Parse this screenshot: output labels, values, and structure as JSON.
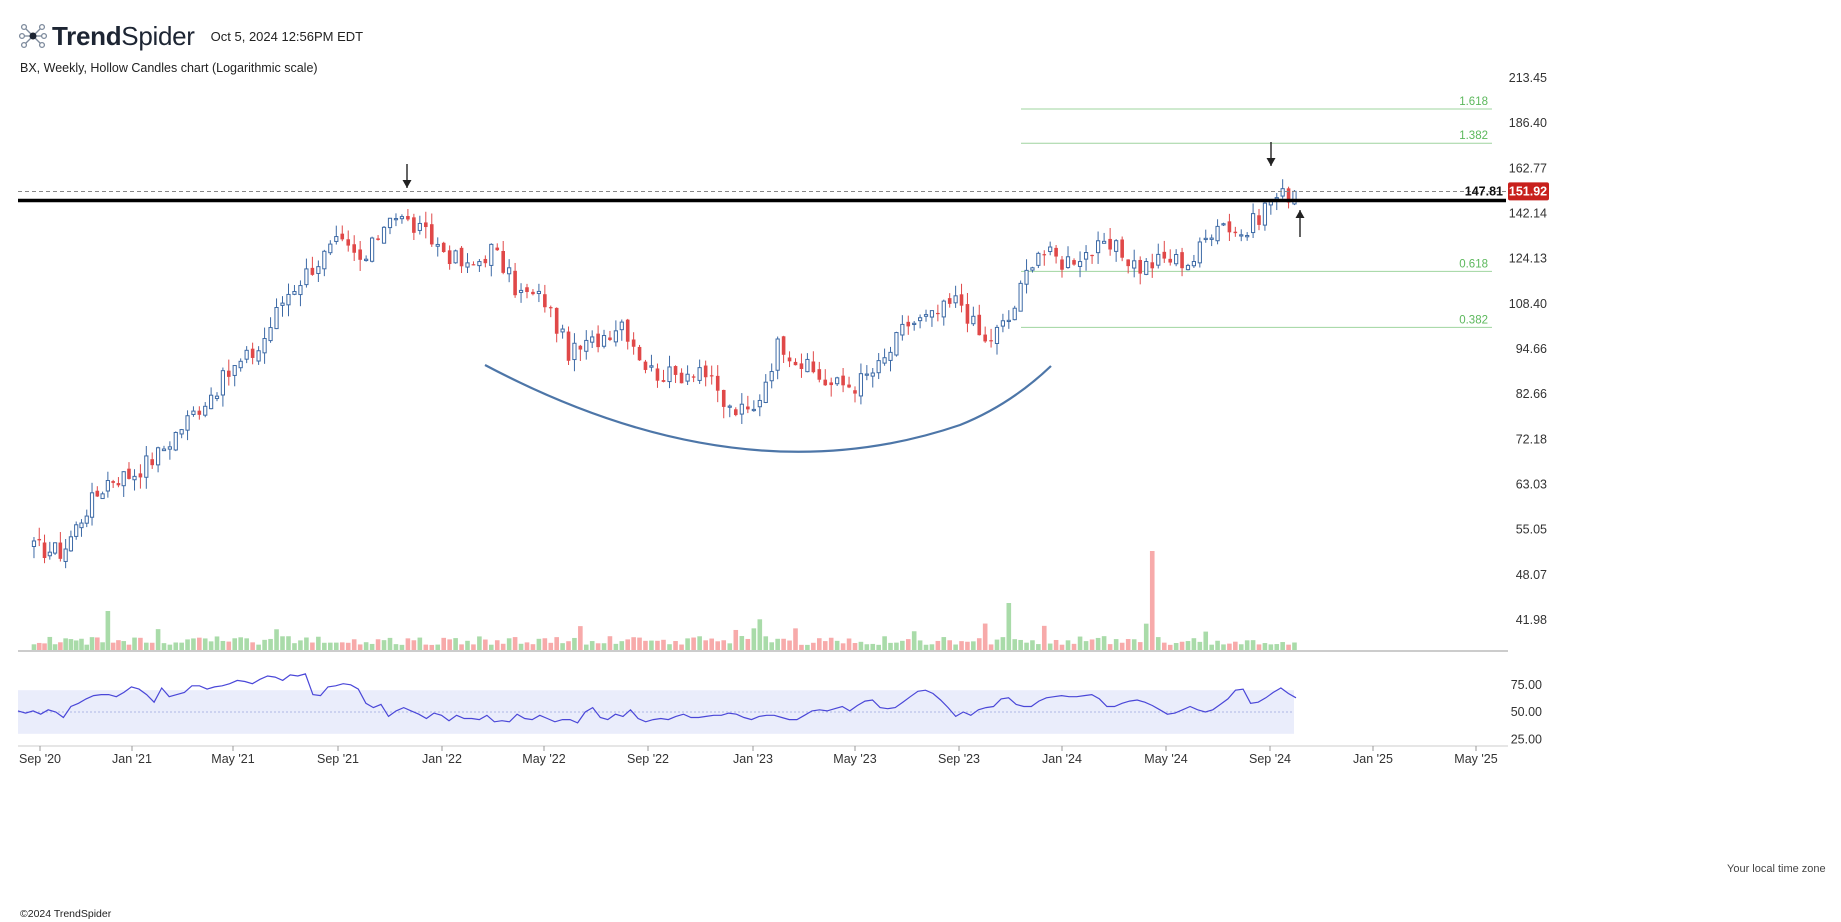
{
  "header": {
    "brand_prefix": "Trend",
    "brand_suffix": "Spider",
    "timestamp": "Oct 5, 2024 12:56PM EDT",
    "subtitle": "BX, Weekly, Hollow Candles chart (Logarithmic scale)",
    "footer": "©2024 TrendSpider",
    "timezone_note": "Your local time zone"
  },
  "colors": {
    "up": "#3d6aa6",
    "down": "#e04848",
    "vol_up": "#a9dba9",
    "vol_down": "#f7aaaa",
    "fib": "#9fd49f",
    "fib_text": "#5cb85c",
    "rsi_line": "#4a47d8",
    "rsi_band": "#eaedfb",
    "cup": "#4d76a8",
    "badge": "#c8201c"
  },
  "chart_data": {
    "type": "candlestick",
    "symbol": "BX",
    "interval": "Weekly",
    "scale": "log",
    "y_ticks": [
      41.98,
      48.07,
      55.05,
      63.03,
      72.18,
      82.66,
      94.66,
      108.4,
      124.13,
      142.14,
      162.77,
      186.4,
      213.45
    ],
    "y_tick_labels": [
      "41.98",
      "48.07",
      "55.05",
      "63.03",
      "72.18",
      "82.66",
      "94.66",
      "108.40",
      "124.13",
      "142.14",
      "162.77",
      "186.40",
      "213.45"
    ],
    "x_tick_labels": [
      "Sep '20",
      "Jan '21",
      "May '21",
      "Sep '21",
      "Jan '22",
      "May '22",
      "Sep '22",
      "Jan '23",
      "May '23",
      "Sep '23",
      "Jan '24",
      "May '24",
      "Sep '24",
      "Jan '25",
      "May '25"
    ],
    "x_tick_dates": [
      "2020-09-01",
      "2021-01-01",
      "2021-05-01",
      "2021-09-01",
      "2022-01-01",
      "2022-05-01",
      "2022-09-01",
      "2023-01-01",
      "2023-05-01",
      "2023-09-01",
      "2024-01-01",
      "2024-05-01",
      "2024-09-01",
      "2025-01-01",
      "2025-05-01"
    ],
    "last_price": "151.92",
    "resistance_level": 147.81,
    "resistance_label": "147.81",
    "fib_levels": [
      {
        "label": "1.618",
        "price": 194.5
      },
      {
        "label": "1.382",
        "price": 175.5
      },
      {
        "label": "0.618",
        "price": 119.5
      },
      {
        "label": "0.382",
        "price": 101.0
      }
    ],
    "anchors": [
      {
        "date": "2020-09-01",
        "price": 52.0
      },
      {
        "date": "2020-10-01",
        "price": 51.5
      },
      {
        "date": "2020-11-01",
        "price": 58.5
      },
      {
        "date": "2020-12-01",
        "price": 64.0
      },
      {
        "date": "2021-01-01",
        "price": 65.0
      },
      {
        "date": "2021-02-01",
        "price": 69.0
      },
      {
        "date": "2021-03-01",
        "price": 75.0
      },
      {
        "date": "2021-04-01",
        "price": 82.0
      },
      {
        "date": "2021-05-01",
        "price": 89.0
      },
      {
        "date": "2021-06-01",
        "price": 95.0
      },
      {
        "date": "2021-07-01",
        "price": 111.0
      },
      {
        "date": "2021-08-01",
        "price": 121.0
      },
      {
        "date": "2021-09-01",
        "price": 130.0
      },
      {
        "date": "2021-10-01",
        "price": 122.0
      },
      {
        "date": "2021-11-01",
        "price": 143.0
      },
      {
        "date": "2021-12-01",
        "price": 136.0
      },
      {
        "date": "2022-01-01",
        "price": 128.0
      },
      {
        "date": "2022-02-01",
        "price": 120.0
      },
      {
        "date": "2022-03-01",
        "price": 128.0
      },
      {
        "date": "2022-04-01",
        "price": 112.0
      },
      {
        "date": "2022-05-01",
        "price": 110.0
      },
      {
        "date": "2022-06-01",
        "price": 93.0
      },
      {
        "date": "2022-07-01",
        "price": 97.0
      },
      {
        "date": "2022-08-01",
        "price": 103.0
      },
      {
        "date": "2022-09-01",
        "price": 89.0
      },
      {
        "date": "2022-10-01",
        "price": 87.0
      },
      {
        "date": "2022-11-01",
        "price": 90.0
      },
      {
        "date": "2022-12-01",
        "price": 79.0
      },
      {
        "date": "2023-01-01",
        "price": 78.0
      },
      {
        "date": "2023-02-01",
        "price": 97.0
      },
      {
        "date": "2023-03-01",
        "price": 90.0
      },
      {
        "date": "2023-04-01",
        "price": 85.0
      },
      {
        "date": "2023-05-01",
        "price": 85.0
      },
      {
        "date": "2023-06-01",
        "price": 90.0
      },
      {
        "date": "2023-07-01",
        "price": 102.0
      },
      {
        "date": "2023-08-01",
        "price": 104.0
      },
      {
        "date": "2023-09-01",
        "price": 110.0
      },
      {
        "date": "2023-10-01",
        "price": 96.0
      },
      {
        "date": "2023-11-01",
        "price": 104.0
      },
      {
        "date": "2023-12-01",
        "price": 128.0
      },
      {
        "date": "2024-01-01",
        "price": 123.0
      },
      {
        "date": "2024-02-01",
        "price": 127.0
      },
      {
        "date": "2024-03-01",
        "price": 128.0
      },
      {
        "date": "2024-04-01",
        "price": 121.0
      },
      {
        "date": "2024-05-01",
        "price": 124.0
      },
      {
        "date": "2024-06-01",
        "price": 123.0
      },
      {
        "date": "2024-07-01",
        "price": 140.0
      },
      {
        "date": "2024-08-01",
        "price": 133.0
      },
      {
        "date": "2024-09-01",
        "price": 148.0
      },
      {
        "date": "2024-10-01",
        "price": 152.0
      }
    ],
    "rsi": {
      "y_ticks": [
        25,
        50,
        75
      ],
      "y_tick_labels": [
        "25.00",
        "50.00",
        "75.00"
      ],
      "band": [
        30,
        70
      ],
      "values": [
        51,
        49,
        51,
        48,
        52,
        50,
        45,
        55,
        58,
        62,
        65,
        66,
        66,
        64,
        68,
        73,
        71,
        66,
        59,
        72,
        64,
        66,
        68,
        74,
        74,
        71,
        73,
        74,
        76,
        79,
        78,
        76,
        80,
        83,
        82,
        79,
        84,
        83,
        85,
        66,
        65,
        73,
        74,
        76,
        75,
        71,
        58,
        54,
        57,
        46,
        51,
        54,
        51,
        48,
        44,
        49,
        47,
        42,
        47,
        44,
        44,
        43,
        47,
        41,
        42,
        41,
        48,
        44,
        43,
        47,
        44,
        41,
        43,
        43,
        40,
        50,
        54,
        45,
        43,
        48,
        46,
        52,
        44,
        41,
        43,
        44,
        43,
        46,
        48,
        45,
        45,
        46,
        47,
        47,
        49,
        48,
        45,
        43,
        46,
        47,
        47,
        45,
        43,
        43,
        47,
        51,
        52,
        51,
        53,
        55,
        51,
        56,
        60,
        61,
        54,
        53,
        54,
        59,
        64,
        69,
        70,
        67,
        61,
        54,
        46,
        50,
        47,
        52,
        54,
        55,
        62,
        63,
        57,
        55,
        55,
        60,
        63,
        64,
        65,
        64,
        64,
        65,
        66,
        62,
        55,
        55,
        58,
        60,
        61,
        59,
        56,
        52,
        48,
        49,
        52,
        55,
        52,
        50,
        52,
        57,
        62,
        70,
        71,
        58,
        59,
        63,
        68,
        72,
        67,
        63
      ]
    }
  }
}
